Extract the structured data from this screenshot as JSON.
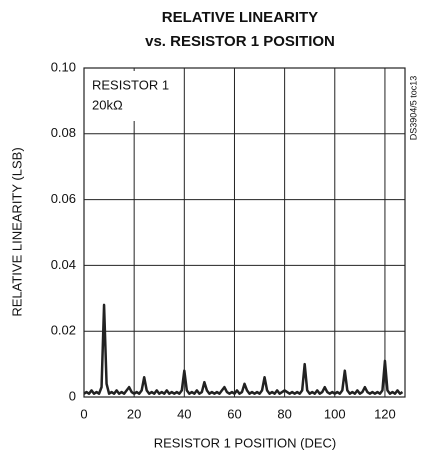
{
  "chart_data": {
    "type": "line",
    "title": "RELATIVE LINEARITY",
    "subtitle": "vs. RESISTOR 1 POSITION",
    "xlabel": "RESISTOR 1 POSITION (DEC)",
    "ylabel": "RELATIVE  LINEARITY (LSB)",
    "annotations": [
      "RESISTOR 1",
      "20kΩ",
      "DS3904/5 toc13"
    ],
    "xlim": [
      0,
      128
    ],
    "xticks": [
      0,
      20,
      40,
      60,
      80,
      100,
      120
    ],
    "ylim": [
      0,
      0.1
    ],
    "yticks": [
      0,
      0.02,
      0.04,
      0.06,
      0.08,
      {
        "value": 0.1,
        "label": "0.10"
      }
    ],
    "grid": true,
    "x": [
      0,
      1,
      2,
      3,
      4,
      5,
      6,
      7,
      8,
      9,
      10,
      11,
      12,
      13,
      14,
      15,
      16,
      17,
      18,
      19,
      20,
      21,
      22,
      23,
      24,
      25,
      26,
      27,
      28,
      29,
      30,
      31,
      32,
      33,
      34,
      35,
      36,
      37,
      38,
      39,
      40,
      41,
      42,
      43,
      44,
      45,
      46,
      47,
      48,
      49,
      50,
      51,
      52,
      53,
      54,
      55,
      56,
      57,
      58,
      59,
      60,
      61,
      62,
      63,
      64,
      65,
      66,
      67,
      68,
      69,
      70,
      71,
      72,
      73,
      74,
      75,
      76,
      77,
      78,
      79,
      80,
      81,
      82,
      83,
      84,
      85,
      86,
      87,
      88,
      89,
      90,
      91,
      92,
      93,
      94,
      95,
      96,
      97,
      98,
      99,
      100,
      101,
      102,
      103,
      104,
      105,
      106,
      107,
      108,
      109,
      110,
      111,
      112,
      113,
      114,
      115,
      116,
      117,
      118,
      119,
      120,
      121,
      122,
      123,
      124,
      125,
      126,
      127
    ],
    "series": [
      {
        "color": "#222222",
        "values": [
          0.001,
          0.0015,
          0.001,
          0.002,
          0.001,
          0.0015,
          0.001,
          0.003,
          0.028,
          0.004,
          0.001,
          0.0015,
          0.001,
          0.002,
          0.001,
          0.0015,
          0.001,
          0.002,
          0.003,
          0.0015,
          0.001,
          0.0015,
          0.001,
          0.002,
          0.006,
          0.002,
          0.001,
          0.0015,
          0.001,
          0.002,
          0.001,
          0.0015,
          0.001,
          0.002,
          0.001,
          0.0015,
          0.001,
          0.0015,
          0.001,
          0.002,
          0.008,
          0.002,
          0.001,
          0.0015,
          0.001,
          0.002,
          0.001,
          0.0015,
          0.0045,
          0.002,
          0.001,
          0.0015,
          0.001,
          0.0015,
          0.001,
          0.002,
          0.003,
          0.0015,
          0.001,
          0.0015,
          0.001,
          0.002,
          0.001,
          0.0015,
          0.004,
          0.002,
          0.001,
          0.0015,
          0.001,
          0.0015,
          0.001,
          0.002,
          0.006,
          0.002,
          0.001,
          0.0015,
          0.001,
          0.002,
          0.001,
          0.0015,
          0.002,
          0.0015,
          0.001,
          0.0015,
          0.001,
          0.0015,
          0.001,
          0.002,
          0.01,
          0.002,
          0.001,
          0.0015,
          0.001,
          0.002,
          0.001,
          0.0015,
          0.003,
          0.0015,
          0.001,
          0.0015,
          0.001,
          0.0015,
          0.001,
          0.002,
          0.008,
          0.002,
          0.001,
          0.0015,
          0.001,
          0.002,
          0.001,
          0.0015,
          0.003,
          0.0015,
          0.001,
          0.0015,
          0.001,
          0.0015,
          0.001,
          0.002,
          0.011,
          0.002,
          0.001,
          0.0015,
          0.001,
          0.002,
          0.001,
          0.0015
        ]
      }
    ]
  }
}
